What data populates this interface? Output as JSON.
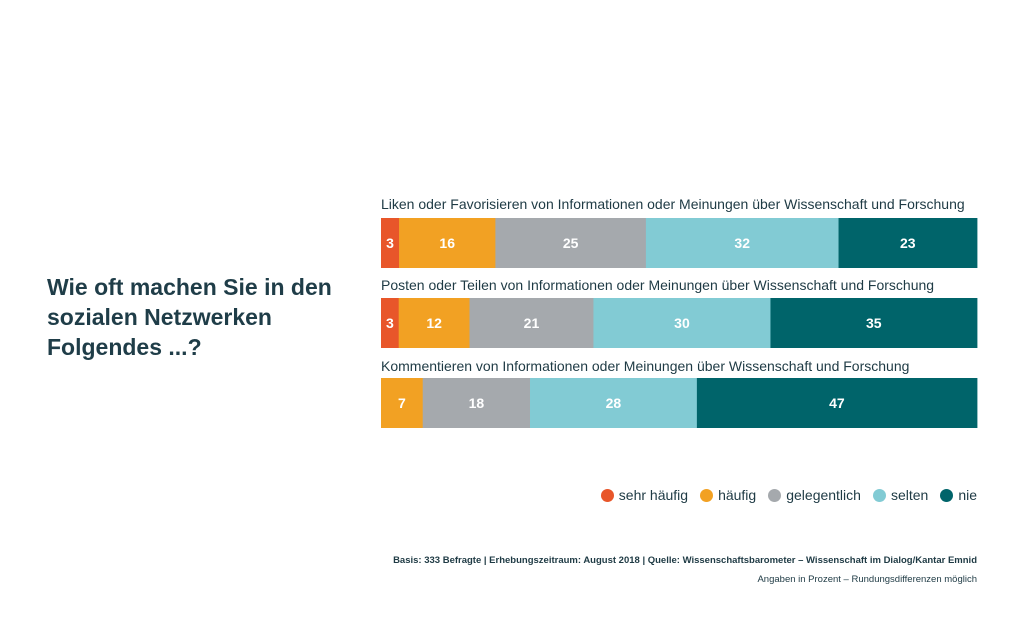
{
  "question": "Wie oft machen Sie in den sozialen Netzwerken Folgendes ...?",
  "chart_data": {
    "type": "bar",
    "stacked": true,
    "orientation": "horizontal",
    "unit": "percent",
    "categories": [
      "Liken oder Favorisieren von Informationen oder Meinungen über Wissenschaft und Forschung",
      "Posten oder Teilen von Informationen oder Meinungen über Wissenschaft und Forschung",
      "Kommentieren von Informationen oder Meinungen über Wissenschaft und Forschung"
    ],
    "series": [
      {
        "name": "sehr häufig",
        "color": "#e8562a",
        "values": [
          3,
          3,
          0
        ]
      },
      {
        "name": "häufig",
        "color": "#f2a123",
        "values": [
          16,
          12,
          7
        ]
      },
      {
        "name": "gelegentlich",
        "color": "#a5a9ad",
        "values": [
          25,
          21,
          18
        ]
      },
      {
        "name": "selten",
        "color": "#82cbd4",
        "values": [
          32,
          30,
          28
        ]
      },
      {
        "name": "nie",
        "color": "#00646a",
        "values": [
          23,
          35,
          47
        ]
      }
    ],
    "legend_position": "bottom-right"
  },
  "footer": {
    "source": "Basis: 333 Befragte | Erhebungszeitraum: August 2018 | Quelle: Wissenschaftsbarometer – Wissenschaft im Dialog/Kantar Emnid",
    "note": "Angaben in Prozent – Rundungsdifferenzen möglich"
  }
}
